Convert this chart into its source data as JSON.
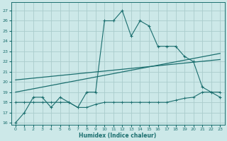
{
  "xlabel": "Humidex (Indice chaleur)",
  "bg_color": "#cce8e8",
  "grid_color": "#aacccc",
  "line_color": "#1a6e6e",
  "xlim": [
    -0.5,
    23.5
  ],
  "ylim": [
    15.8,
    27.8
  ],
  "xticks": [
    0,
    1,
    2,
    3,
    4,
    5,
    6,
    7,
    8,
    9,
    10,
    11,
    12,
    13,
    14,
    15,
    16,
    17,
    18,
    19,
    20,
    21,
    22,
    23
  ],
  "yticks": [
    16,
    17,
    18,
    19,
    20,
    21,
    22,
    23,
    24,
    25,
    26,
    27
  ],
  "main_x": [
    0,
    1,
    2,
    3,
    4,
    5,
    6,
    7,
    8,
    9,
    10,
    11,
    12,
    13,
    14,
    15,
    16,
    17,
    18,
    19,
    20,
    21,
    22,
    23
  ],
  "main_y": [
    16,
    17,
    18.5,
    18.5,
    17.5,
    18.5,
    18,
    17.5,
    19,
    19,
    26,
    26,
    27,
    24.5,
    26,
    25.5,
    23.5,
    23.5,
    23.5,
    22.5,
    22,
    19.5,
    19,
    18.5
  ],
  "flat_x": [
    0,
    1,
    2,
    3,
    4,
    5,
    6,
    7,
    8,
    9,
    10,
    11,
    12,
    13,
    14,
    15,
    16,
    17,
    18,
    19,
    20,
    21,
    22,
    23
  ],
  "flat_y": [
    18,
    18,
    18,
    18,
    18,
    18,
    18,
    17.5,
    17.5,
    17.8,
    18,
    18,
    18,
    18,
    18,
    18,
    18,
    18,
    18.2,
    18.4,
    18.5,
    19,
    19,
    19
  ],
  "trend1_x": [
    0,
    23
  ],
  "trend1_y": [
    19.0,
    22.8
  ],
  "trend2_x": [
    0,
    23
  ],
  "trend2_y": [
    20.2,
    22.2
  ]
}
